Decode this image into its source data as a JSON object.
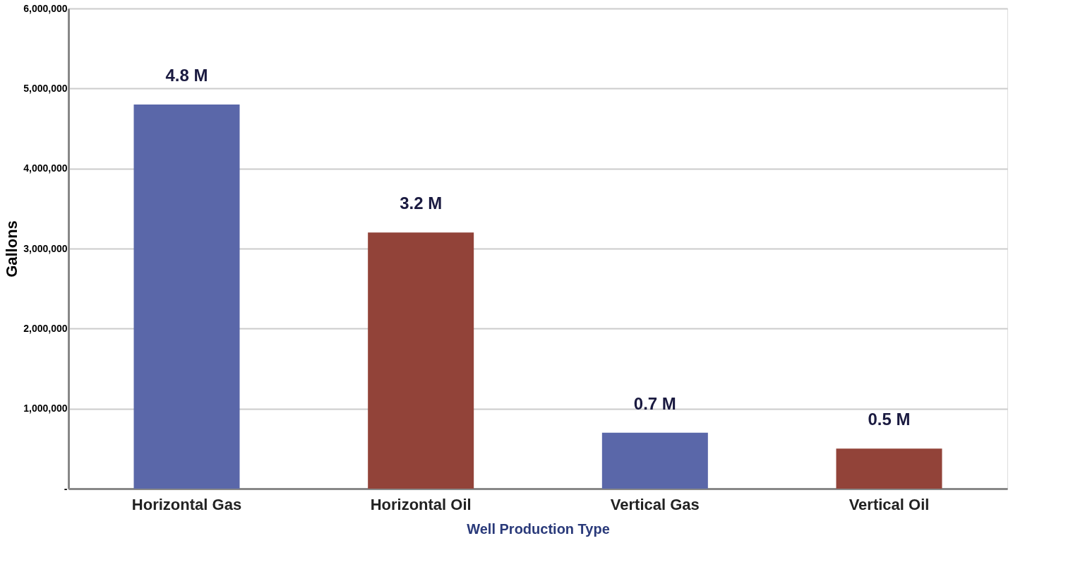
{
  "chart_data": {
    "type": "bar",
    "xlabel": "Well Production Type",
    "ylabel": "Gallons",
    "categories": [
      "Horizontal Gas",
      "Horizontal Oil",
      "Vertical Gas",
      "Vertical Oil"
    ],
    "values": [
      4800000,
      3200000,
      700000,
      500000
    ],
    "colors": [
      "#5a67a9",
      "#924339",
      "#5a67a9",
      "#924339"
    ],
    "value_labels": [
      "4.8 M",
      "3.2 M",
      "0.7 M",
      "0.5 M"
    ],
    "ylim": [
      0,
      6000000
    ],
    "yticks": [
      {
        "value": 0,
        "label": "-"
      },
      {
        "value": 1000000,
        "label": "1,000,000"
      },
      {
        "value": 2000000,
        "label": "2,000,000"
      },
      {
        "value": 3000000,
        "label": "3,000,000"
      },
      {
        "value": 4000000,
        "label": "4,000,000"
      },
      {
        "value": 5000000,
        "label": "5,000,000"
      },
      {
        "value": 6000000,
        "label": "6,000,000"
      }
    ],
    "grid": "y"
  }
}
